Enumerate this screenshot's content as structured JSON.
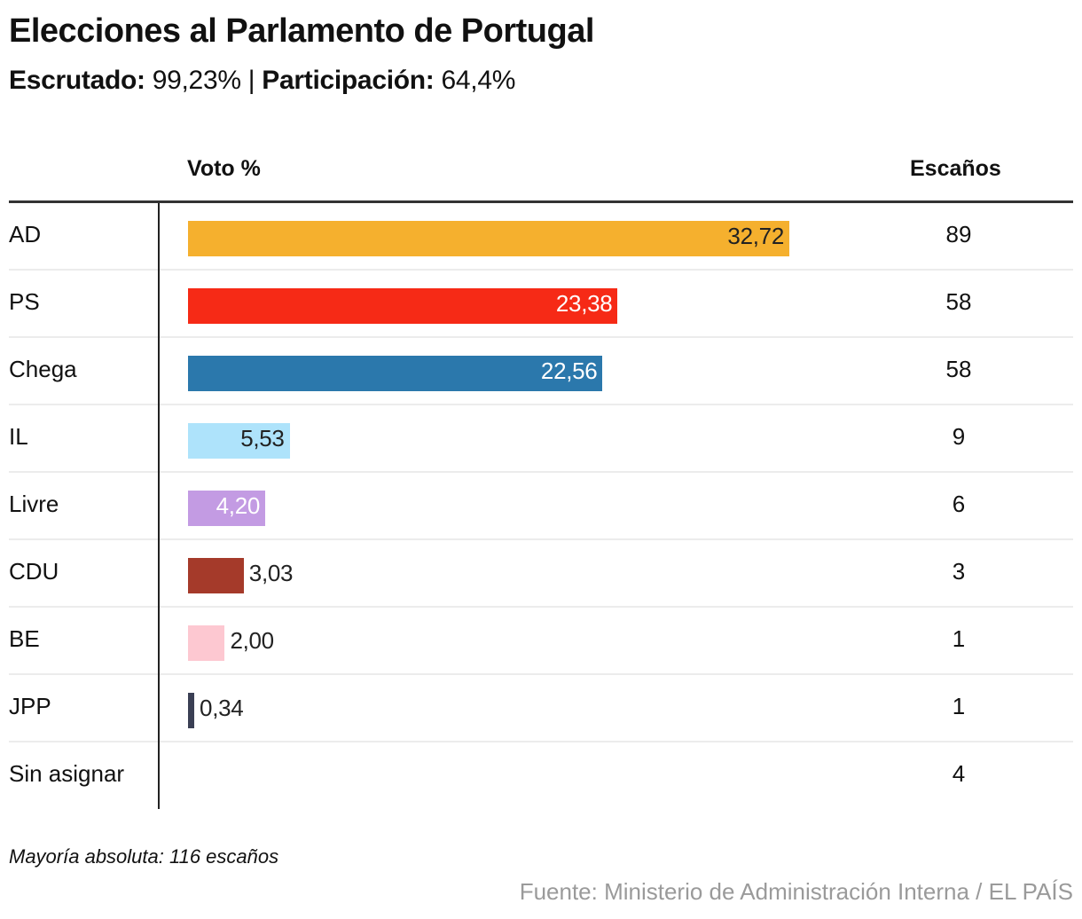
{
  "header": {
    "title": "Elecciones al Parlamento de Portugal",
    "scrutinized_label": "Escrutado:",
    "scrutinized_value": "99,23%",
    "separator": "|",
    "turnout_label": "Participación:",
    "turnout_value": "64,4%"
  },
  "columns": {
    "vote": "Voto %",
    "seats": "Escaños"
  },
  "chart_data": {
    "type": "bar",
    "title": "Elecciones al Parlamento de Portugal",
    "xlabel": "Voto %",
    "ylabel": "",
    "categories": [
      "AD",
      "PS",
      "Chega",
      "IL",
      "Livre",
      "CDU",
      "BE",
      "JPP",
      "Sin asignar"
    ],
    "values": [
      32.72,
      23.38,
      22.56,
      5.53,
      4.2,
      3.03,
      2.0,
      0.34,
      null
    ],
    "value_labels": [
      "32,72",
      "23,38",
      "22,56",
      "5,53",
      "4,20",
      "3,03",
      "2,00",
      "0,34",
      ""
    ],
    "seats": [
      89,
      58,
      58,
      9,
      6,
      3,
      1,
      1,
      4
    ],
    "colors": [
      "#f5b02e",
      "#f62a16",
      "#2b78ac",
      "#aee3fb",
      "#c39be3",
      "#a53a2a",
      "#fdc8d1",
      "#3a3f54",
      null
    ],
    "label_colors": [
      "#222222",
      "#ffffff",
      "#ffffff",
      "#222222",
      "#ffffff",
      "#222222",
      "#222222",
      "#222222",
      "#222222"
    ],
    "label_inside": [
      true,
      true,
      true,
      true,
      true,
      false,
      false,
      false,
      false
    ],
    "xlim": [
      0,
      32.72
    ],
    "grid": false,
    "legend": "none"
  },
  "footer": {
    "note": "Mayoría absoluta: 116 escaños",
    "source": "Fuente: Ministerio de Administración Interna / EL PAÍS"
  }
}
